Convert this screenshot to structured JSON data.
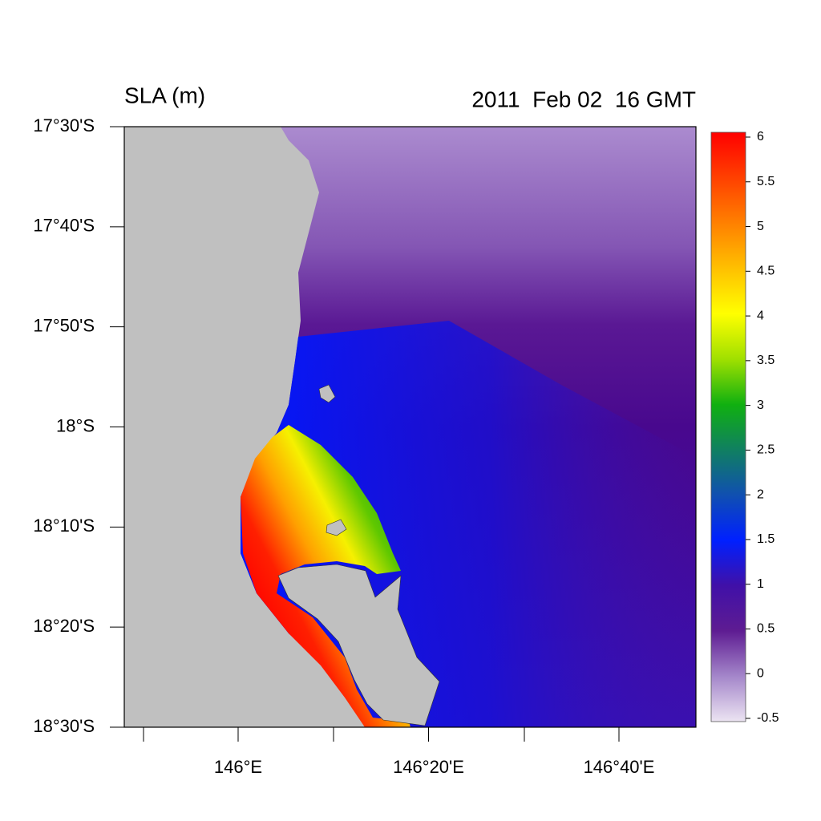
{
  "map": {
    "title": "SLA (m)",
    "time": "2011  Feb 02  16 GMT",
    "lat_labels": [
      "17°30'S",
      "17°40'S",
      "17°50'S",
      "18°S",
      "18°10'S",
      "18°20'S",
      "18°30'S"
    ],
    "lon_labels": [
      "146°E",
      "146°20'E",
      "146°40'E"
    ]
  },
  "colorbar": {
    "range": [
      -0.5,
      6
    ],
    "ticks": [
      6,
      5.5,
      5,
      4.5,
      4,
      3.5,
      3,
      2.5,
      2,
      1.5,
      1,
      0.5,
      0,
      -0.5
    ]
  }
}
